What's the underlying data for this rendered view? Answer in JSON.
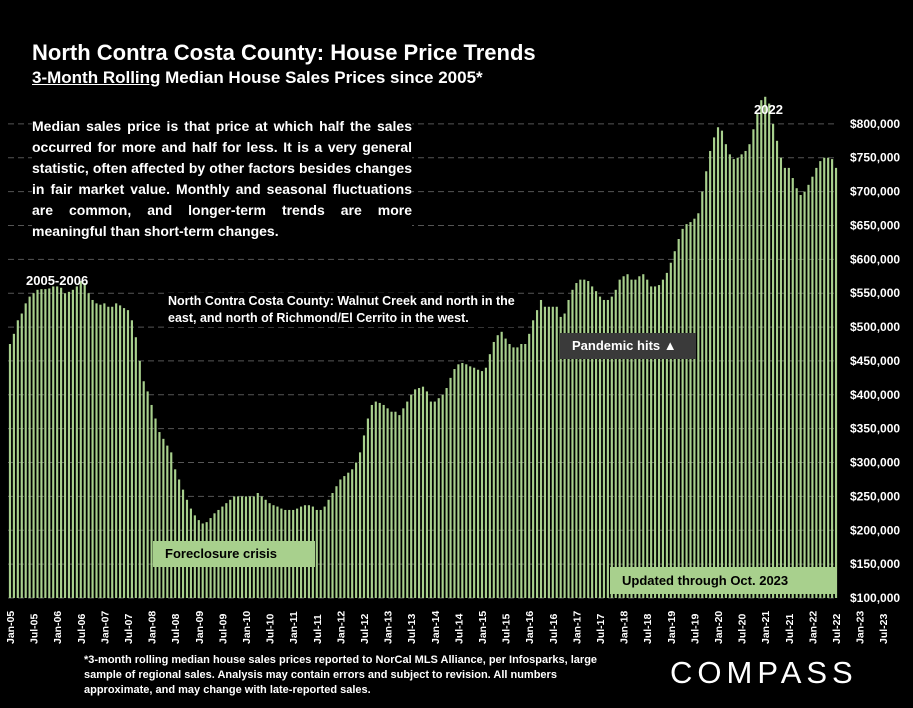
{
  "title": "North Contra Costa County: House Price Trends",
  "subtitle_underlined": "3-Month Rolling",
  "subtitle_rest": " Median House Sales Prices since 2005*",
  "description": "Median sales price is that price at which half the sales occurred for more and half for less. It is a very general statistic, often affected by other factors besides changes in fair market value. Monthly and seasonal fluctuations are common, and longer-term trends are more meaningful than short-term changes.",
  "region_note": "North Contra Costa County: Walnut Creek and north in the east, and north of Richmond/El Cerrito in the west.",
  "annotations": {
    "peak_2005": "2005-2006",
    "peak_2022": "2022",
    "foreclosure": "Foreclosure crisis",
    "pandemic": "Pandemic hits ▲",
    "updated": "Updated through Oct. 2023"
  },
  "footnote": "*3-month rolling median house sales prices reported to NorCal MLS Alliance, per Infosparks, large sample of regional sales. Analysis may contain errors and subject to revision. All numbers approximate, and may change with late-reported sales.",
  "logo": "COMPASS",
  "colors": {
    "bar": "#a8d08d",
    "background": "#000000",
    "grid": "#555555",
    "text": "#ffffff"
  },
  "chart_data": {
    "type": "bar",
    "ylim": [
      100000,
      850000
    ],
    "y_ticks": [
      "$100,000",
      "$150,000",
      "$200,000",
      "$250,000",
      "$300,000",
      "$350,000",
      "$400,000",
      "$450,000",
      "$500,000",
      "$550,000",
      "$600,000",
      "$650,000",
      "$700,000",
      "$750,000",
      "$800,000"
    ],
    "y_tick_values": [
      100000,
      150000,
      200000,
      250000,
      300000,
      350000,
      400000,
      450000,
      500000,
      550000,
      600000,
      650000,
      700000,
      750000,
      800000
    ],
    "x_tick_labels": [
      "Jan-05",
      "Jul-05",
      "Jan-06",
      "Jul-06",
      "Jan-07",
      "Jul-07",
      "Jan-08",
      "Jul-08",
      "Jan-09",
      "Jul-09",
      "Jan-10",
      "Jul-10",
      "Jan-11",
      "Jul-11",
      "Jan-12",
      "Jul-12",
      "Jan-13",
      "Jul-13",
      "Jan-14",
      "Jul-14",
      "Jan-15",
      "Jul-15",
      "Jan-16",
      "Jul-16",
      "Jan-17",
      "Jul-17",
      "Jan-18",
      "Jul-18",
      "Jan-19",
      "Jul-19",
      "Jan-20",
      "Jul-20",
      "Jan-21",
      "Jul-21",
      "Jan-22",
      "Jul-22",
      "Jan-23",
      "Jul-23"
    ],
    "grid": true,
    "series": [
      {
        "values": [
          475000,
          490000,
          510000,
          520000,
          535000,
          545000,
          550000,
          555000,
          556000,
          556000,
          557000,
          560000,
          560000,
          558000,
          550000,
          552000,
          555000,
          560000,
          568000,
          565000,
          550000,
          540000,
          535000,
          533000,
          535000,
          530000,
          530000,
          535000,
          532000,
          528000,
          525000,
          510000,
          485000,
          450000,
          420000,
          405000,
          385000,
          365000,
          345000,
          335000,
          325000,
          315000,
          290000,
          275000,
          260000,
          245000,
          232000,
          222000,
          215000,
          210000,
          212000,
          218000,
          225000,
          230000,
          235000,
          240000,
          245000,
          250000,
          250000,
          250000,
          250000,
          250000,
          250000,
          255000,
          250000,
          245000,
          240000,
          237000,
          235000,
          232000,
          230000,
          230000,
          230000,
          232000,
          235000,
          237000,
          237000,
          235000,
          230000,
          230000,
          235000,
          245000,
          255000,
          265000,
          275000,
          280000,
          285000,
          290000,
          300000,
          315000,
          340000,
          365000,
          385000,
          390000,
          388000,
          385000,
          380000,
          375000,
          375000,
          370000,
          380000,
          390000,
          400000,
          408000,
          410000,
          412000,
          405000,
          390000,
          390000,
          395000,
          400000,
          410000,
          425000,
          438000,
          445000,
          447000,
          445000,
          442000,
          440000,
          437000,
          435000,
          440000,
          460000,
          478000,
          488000,
          493000,
          483000,
          475000,
          470000,
          470000,
          475000,
          475000,
          490000,
          510000,
          525000,
          540000,
          530000,
          530000,
          530000,
          530000,
          515000,
          520000,
          540000,
          555000,
          565000,
          570000,
          570000,
          568000,
          560000,
          553000,
          545000,
          540000,
          540000,
          545000,
          555000,
          570000,
          575000,
          578000,
          570000,
          570000,
          575000,
          578000,
          570000,
          560000,
          560000,
          562000,
          570000,
          580000,
          595000,
          612000,
          630000,
          645000,
          652000,
          655000,
          660000,
          668000,
          700000,
          730000,
          760000,
          780000,
          795000,
          790000,
          770000,
          755000,
          748000,
          750000,
          755000,
          760000,
          770000,
          792000,
          815000,
          835000,
          840000,
          830000,
          800000,
          775000,
          750000,
          735000,
          735000,
          720000,
          705000,
          695000,
          700000,
          710000,
          722000,
          735000,
          745000,
          750000,
          750000,
          748000,
          735000
        ]
      }
    ]
  }
}
